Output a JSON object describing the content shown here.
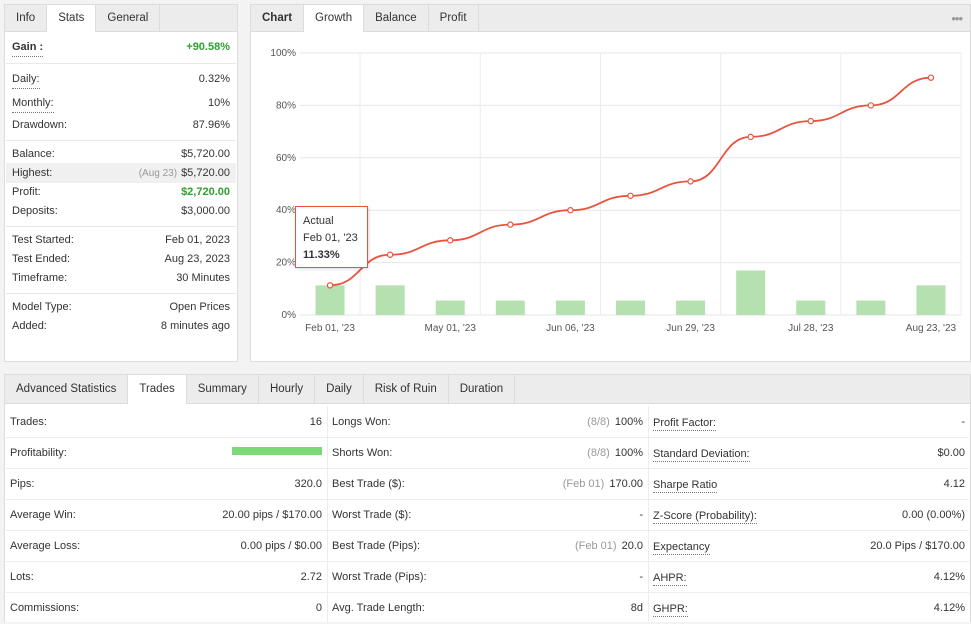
{
  "left_panel": {
    "tabs": [
      "Info",
      "Stats",
      "General"
    ],
    "gain": {
      "label": "Gain :",
      "value": "+90.58%"
    },
    "daily": {
      "label": "Daily:",
      "value": "0.32%"
    },
    "monthly": {
      "label": "Monthly:",
      "value": "10%"
    },
    "drawdown": {
      "label": "Drawdown:",
      "value": "87.96%"
    },
    "balance": {
      "label": "Balance:",
      "value": "$5,720.00"
    },
    "highest": {
      "label": "Highest:",
      "date": "(Aug 23)",
      "value": "$5,720.00"
    },
    "profit": {
      "label": "Profit:",
      "value": "$2,720.00"
    },
    "deposits": {
      "label": "Deposits:",
      "value": "$3,000.00"
    },
    "test_started": {
      "label": "Test Started:",
      "value": "Feb 01, 2023"
    },
    "test_ended": {
      "label": "Test Ended:",
      "value": "Aug 23, 2023"
    },
    "timeframe": {
      "label": "Timeframe:",
      "value": "30 Minutes"
    },
    "model_type": {
      "label": "Model Type:",
      "value": "Open Prices"
    },
    "added": {
      "label": "Added:",
      "value": "8 minutes ago"
    }
  },
  "chart_panel": {
    "tabs": [
      "Chart",
      "Growth",
      "Balance",
      "Profit"
    ],
    "more_icon": "•••",
    "tooltip": {
      "title": "Actual",
      "date": "Feb 01, '23",
      "value": "11.33%"
    }
  },
  "chart_data": {
    "type": "line",
    "y_ticks": [
      "0%",
      "20%",
      "40%",
      "60%",
      "80%",
      "100%"
    ],
    "ylim": [
      0,
      100
    ],
    "x_ticks": [
      "Feb 01, '23",
      "May 01, '23",
      "Jun 06, '23",
      "Jun 29, '23",
      "Jul 28, '23",
      "Aug 23, '23"
    ],
    "series": [
      {
        "type": "line",
        "color": "#e8533f",
        "values": [
          11.33,
          23,
          28.5,
          34.5,
          40,
          45.5,
          51,
          68,
          74,
          80,
          90.58
        ]
      },
      {
        "type": "bar",
        "color": "#b5e0b0",
        "values": [
          11.33,
          11.33,
          5.5,
          5.5,
          5.5,
          5.5,
          5.5,
          17,
          5.5,
          5.5,
          11.33
        ]
      }
    ],
    "grid": true
  },
  "bottom": {
    "tabs": [
      "Advanced Statistics",
      "Trades",
      "Summary",
      "Hourly",
      "Daily",
      "Risk of Ruin",
      "Duration"
    ],
    "col1": [
      {
        "label": "Trades:",
        "value": "16"
      },
      {
        "label": "Profitability:",
        "bar_fill": 1.0
      },
      {
        "label": "Pips:",
        "value": "320.0"
      },
      {
        "label": "Average Win:",
        "value": "20.00 pips / $170.00"
      },
      {
        "label": "Average Loss:",
        "value": "0.00 pips / $0.00"
      },
      {
        "label": "Lots:",
        "value": "2.72"
      },
      {
        "label": "Commissions:",
        "value": "0"
      }
    ],
    "col2": [
      {
        "label": "Longs Won:",
        "pre": "(8/8)",
        "value": "100%"
      },
      {
        "label": "Shorts Won:",
        "pre": "(8/8)",
        "value": "100%"
      },
      {
        "label": "Best Trade ($):",
        "pre": "(Feb 01)",
        "value": "170.00"
      },
      {
        "label": "Worst Trade ($):",
        "pre": "",
        "value": "-"
      },
      {
        "label": "Best Trade (Pips):",
        "pre": "(Feb 01)",
        "value": "20.0"
      },
      {
        "label": "Worst Trade (Pips):",
        "pre": "",
        "value": "-"
      },
      {
        "label": "Avg. Trade Length:",
        "pre": "",
        "value": "8d"
      }
    ],
    "col3": [
      {
        "label": "Profit Factor:",
        "value": "-"
      },
      {
        "label": "Standard Deviation:",
        "value": "$0.00"
      },
      {
        "label": "Sharpe Ratio",
        "value": "4.12"
      },
      {
        "label": "Z-Score (Probability):",
        "value": "0.00 (0.00%)"
      },
      {
        "label": "Expectancy",
        "value": "20.0 Pips / $170.00"
      },
      {
        "label": "AHPR:",
        "value": "4.12%"
      },
      {
        "label": "GHPR:",
        "value": "4.12%"
      }
    ]
  }
}
